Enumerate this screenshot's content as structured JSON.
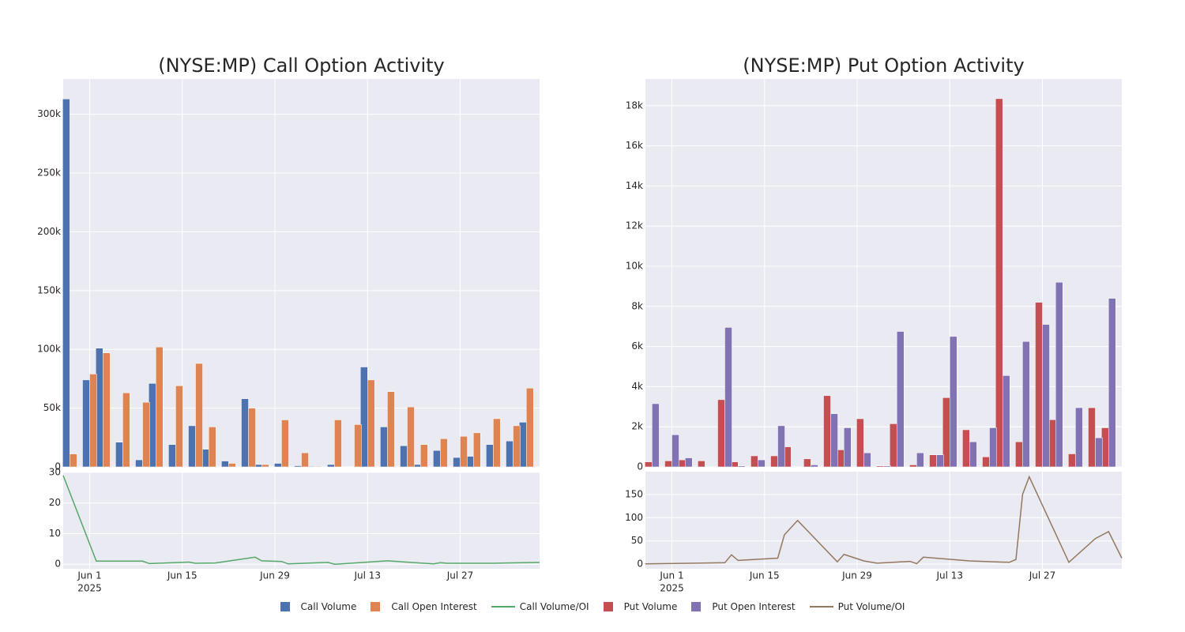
{
  "chart_data": [
    {
      "type": "bar",
      "title": "(NYSE:MP) Call Option Activity",
      "x": [
        "2025-05-29",
        "2025-06-01",
        "2025-06-03",
        "2025-06-06",
        "2025-06-09",
        "2025-06-11",
        "2025-06-14",
        "2025-06-17",
        "2025-06-19",
        "2025-06-22",
        "2025-06-25",
        "2025-06-27",
        "2025-06-30",
        "2025-07-03",
        "2025-07-05",
        "2025-07-08",
        "2025-07-11",
        "2025-07-13",
        "2025-07-16",
        "2025-07-19",
        "2025-07-21",
        "2025-07-24",
        "2025-07-27",
        "2025-07-29",
        "2025-08-01",
        "2025-08-04",
        "2025-08-06"
      ],
      "series": [
        {
          "name": "Call Volume",
          "color": "#4c72b0",
          "values": [
            313000,
            74000,
            101000,
            21000,
            6000,
            71000,
            19000,
            35000,
            15000,
            5000,
            58000,
            2000,
            3000,
            1000,
            500,
            2000,
            300,
            85000,
            34000,
            18000,
            2000,
            14000,
            8000,
            9000,
            19000,
            22000,
            38000
          ]
        },
        {
          "name": "Call Open Interest",
          "color": "#dd8452",
          "values": [
            11000,
            79000,
            97000,
            63000,
            55000,
            102000,
            69000,
            88000,
            34000,
            3000,
            50000,
            2000,
            40000,
            12000,
            500,
            40000,
            36000,
            74000,
            64000,
            51000,
            19000,
            24000,
            26000,
            29000,
            41000,
            35000,
            67000
          ]
        }
      ],
      "xlim": [
        "2025-05-28",
        "2025-08-08"
      ],
      "xticks": [
        "2025-06-01",
        "2025-06-15",
        "2025-06-29",
        "2025-07-13",
        "2025-07-27"
      ],
      "ylim": [
        0,
        330000
      ],
      "yticks": [
        0,
        {
          "value": 50000,
          "label": "50k"
        },
        {
          "value": 100000,
          "label": "100k"
        },
        {
          "value": 150000,
          "label": "150k"
        },
        {
          "value": 200000,
          "label": "200k"
        },
        {
          "value": 250000,
          "label": "250k"
        },
        {
          "value": 300000,
          "label": "300k"
        }
      ],
      "grid": true
    },
    {
      "type": "line",
      "x": [
        "2025-05-28",
        "2025-06-02",
        "2025-06-09",
        "2025-06-10",
        "2025-06-16",
        "2025-06-17",
        "2025-06-20",
        "2025-06-26",
        "2025-06-27",
        "2025-06-30",
        "2025-07-01",
        "2025-07-07",
        "2025-07-08",
        "2025-07-09",
        "2025-07-16",
        "2025-07-23",
        "2025-07-24",
        "2025-07-25",
        "2025-08-01",
        "2025-08-08"
      ],
      "series": [
        {
          "name": "Call Volume/OI",
          "color": "#55a868",
          "values": [
            29,
            1,
            1,
            0.2,
            0.7,
            0.3,
            0.4,
            2.3,
            1.1,
            0.9,
            0.1,
            0.6,
            0,
            0.1,
            1.1,
            0.1,
            0.5,
            0.3,
            0.3,
            0.6
          ]
        }
      ],
      "xlim": [
        "2025-05-28",
        "2025-08-08"
      ],
      "xticks": [
        {
          "value": "2025-06-01",
          "label": "Jun 1"
        },
        {
          "value": "2025-06-15",
          "label": "Jun 15"
        },
        {
          "value": "2025-06-29",
          "label": "Jun 29"
        },
        {
          "value": "2025-07-13",
          "label": "Jul 13"
        },
        {
          "value": "2025-07-27",
          "label": "Jul 27"
        }
      ],
      "x_year": "2025",
      "ylim": [
        -1.5,
        30
      ],
      "yticks": [
        0,
        10,
        20,
        30
      ],
      "grid": true
    },
    {
      "type": "bar",
      "title": "(NYSE:MP) Put Option Activity",
      "x": [
        "2025-05-29",
        "2025-06-01",
        "2025-06-03",
        "2025-06-06",
        "2025-06-09",
        "2025-06-11",
        "2025-06-14",
        "2025-06-17",
        "2025-06-19",
        "2025-06-22",
        "2025-06-25",
        "2025-06-27",
        "2025-06-30",
        "2025-07-03",
        "2025-07-05",
        "2025-07-08",
        "2025-07-11",
        "2025-07-13",
        "2025-07-16",
        "2025-07-19",
        "2025-07-21",
        "2025-07-24",
        "2025-07-27",
        "2025-07-29",
        "2025-08-01",
        "2025-08-04",
        "2025-08-06"
      ],
      "series": [
        {
          "name": "Put Volume",
          "color": "#c44e52",
          "values": [
            250,
            300,
            350,
            300,
            3350,
            250,
            550,
            550,
            1000,
            400,
            3550,
            850,
            2400,
            50,
            2150,
            100,
            600,
            3450,
            1850,
            500,
            18350,
            1250,
            8200,
            2350,
            650,
            2950,
            1950
          ]
        },
        {
          "name": "Put Open Interest",
          "color": "#8172b3",
          "values": [
            3150,
            1600,
            450,
            0,
            6950,
            50,
            350,
            2050,
            0,
            100,
            2650,
            1950,
            700,
            50,
            6750,
            700,
            600,
            6500,
            1250,
            1950,
            4550,
            6250,
            7100,
            9200,
            2950,
            1450,
            8400
          ]
        }
      ],
      "xlim": [
        "2025-05-28",
        "2025-08-08"
      ],
      "xticks": [
        "2025-06-01",
        "2025-06-15",
        "2025-06-29",
        "2025-07-13",
        "2025-07-27"
      ],
      "ylim": [
        0,
        19330
      ],
      "yticks": [
        0,
        {
          "value": 2000,
          "label": "2k"
        },
        {
          "value": 4000,
          "label": "4k"
        },
        {
          "value": 6000,
          "label": "6k"
        },
        {
          "value": 8000,
          "label": "8k"
        },
        {
          "value": 10000,
          "label": "10k"
        },
        {
          "value": 12000,
          "label": "12k"
        },
        {
          "value": 14000,
          "label": "14k"
        },
        {
          "value": 16000,
          "label": "16k"
        },
        {
          "value": 18000,
          "label": "18k"
        }
      ],
      "grid": true
    },
    {
      "type": "line",
      "x": [
        "2025-05-28",
        "2025-06-09",
        "2025-06-10",
        "2025-06-11",
        "2025-06-17",
        "2025-06-18",
        "2025-06-20",
        "2025-06-26",
        "2025-06-27",
        "2025-06-30",
        "2025-07-02",
        "2025-07-07",
        "2025-07-08",
        "2025-07-09",
        "2025-07-16",
        "2025-07-22",
        "2025-07-23",
        "2025-07-24",
        "2025-07-25",
        "2025-07-31",
        "2025-08-04",
        "2025-08-06",
        "2025-08-08"
      ],
      "series": [
        {
          "name": "Put Volume/OI",
          "color": "#937860",
          "values": [
            0.5,
            3,
            20,
            8,
            13,
            63,
            94,
            5,
            21,
            7,
            2,
            6,
            1,
            15,
            7,
            4,
            10,
            150,
            188,
            4,
            55,
            70,
            13
          ]
        }
      ],
      "xlim": [
        "2025-05-28",
        "2025-08-08"
      ],
      "xticks": [
        {
          "value": "2025-06-01",
          "label": "Jun 1"
        },
        {
          "value": "2025-06-15",
          "label": "Jun 15"
        },
        {
          "value": "2025-06-29",
          "label": "Jun 29"
        },
        {
          "value": "2025-07-13",
          "label": "Jul 13"
        },
        {
          "value": "2025-07-27",
          "label": "Jul 27"
        }
      ],
      "x_year": "2025",
      "ylim": [
        -10,
        199
      ],
      "yticks": [
        0,
        50,
        100,
        150
      ],
      "grid": true
    }
  ]
}
